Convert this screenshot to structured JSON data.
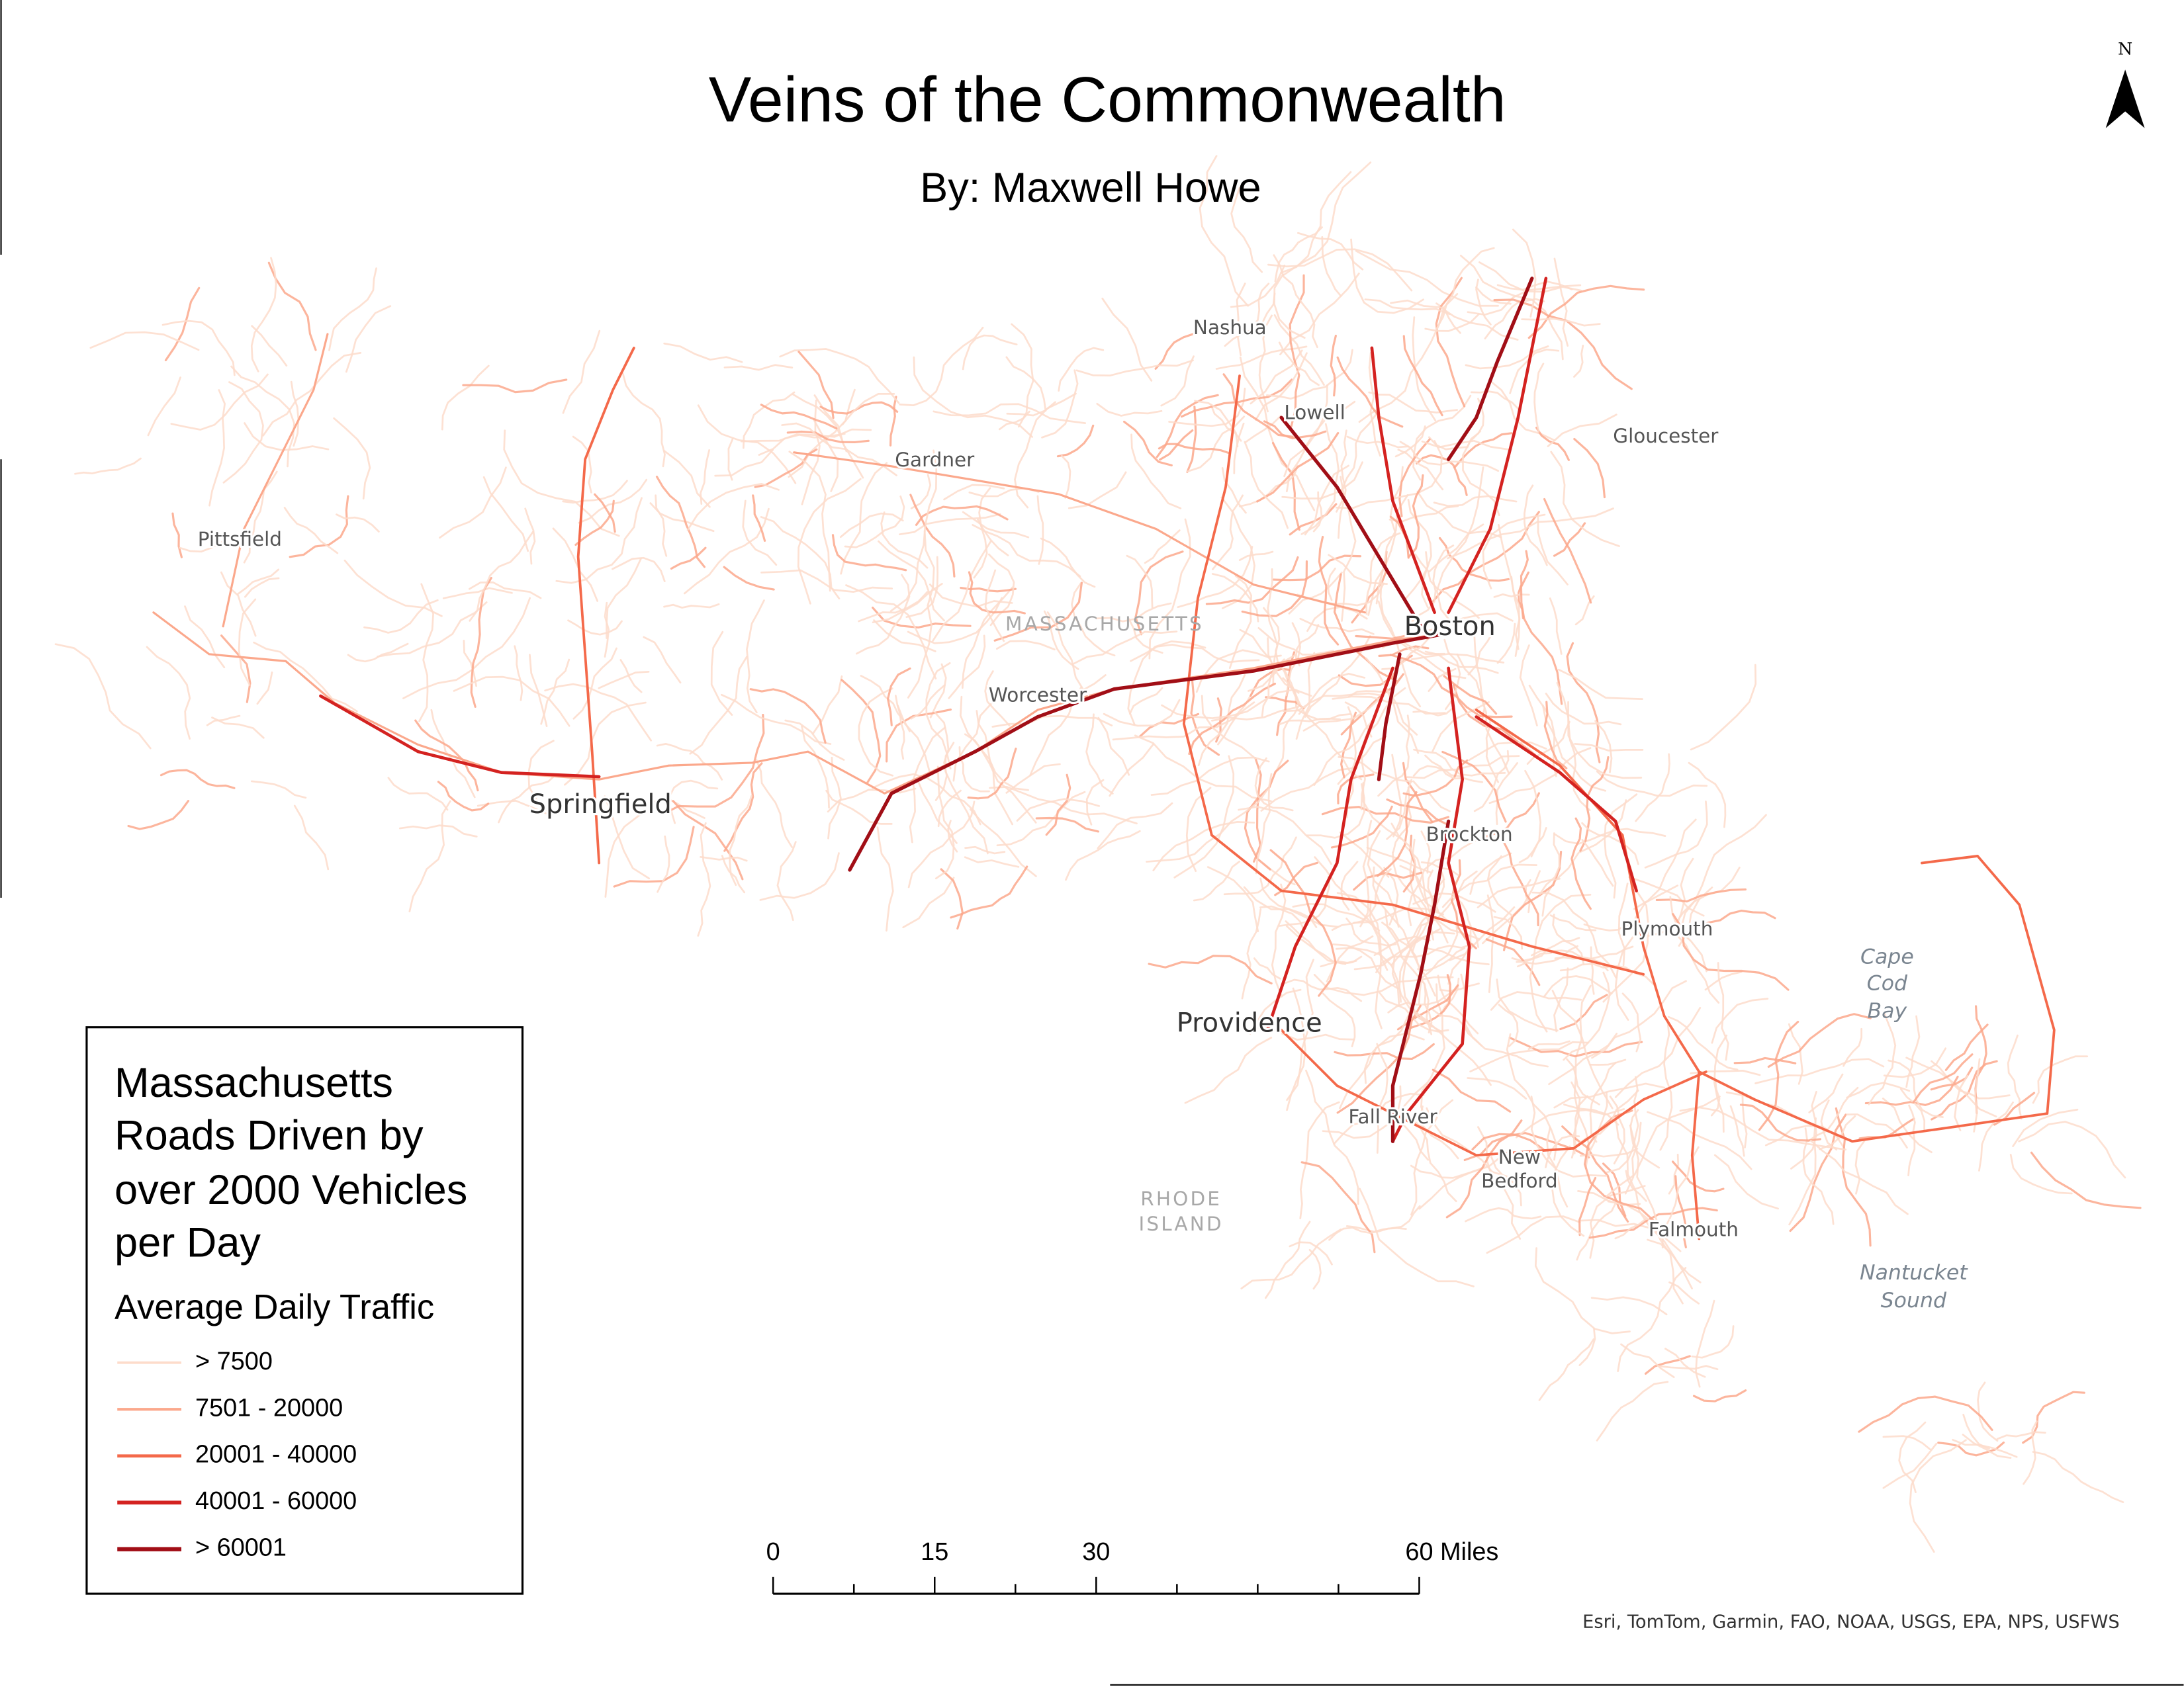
{
  "title": "Veins of the Commonwealth",
  "subtitle": "By: Maxwell Howe",
  "north_arrow": "N",
  "legend": {
    "title_lines": [
      "Massachusetts",
      "Roads Driven by",
      "over 2000 Vehicles",
      "per Day"
    ],
    "subtitle": "Average Daily Traffic",
    "items": [
      {
        "label": "> 7500",
        "color": "#fddccb"
      },
      {
        "label": "7501 - 20000",
        "color": "#fba88c"
      },
      {
        "label": "20001 - 40000",
        "color": "#f4694a"
      },
      {
        "label": "40001 - 60000",
        "color": "#d42220"
      },
      {
        "label": "> 60001",
        "color": "#a10e16"
      }
    ]
  },
  "scale_bar": {
    "labels": [
      "0",
      "15",
      "30",
      "60 Miles"
    ]
  },
  "attribution": "Esri, TomTom, Garmin, FAO, NOAA, USGS, EPA, NPS, USFWS",
  "places": {
    "nashua": "Nashua",
    "lowell": "Lowell",
    "gloucester": "Gloucester",
    "gardner": "Gardner",
    "pittsfield": "Pittsfield",
    "massachusetts": "MASSACHUSETTS",
    "boston": "Boston",
    "worcester": "Worcester",
    "springfield": "Springfield",
    "brockton": "Brockton",
    "plymouth": "Plymouth",
    "cape_cod_bay": [
      "Cape",
      "Cod",
      "Bay"
    ],
    "providence": "Providence",
    "fall_river": "Fall River",
    "new_bedford": [
      "New",
      "Bedford"
    ],
    "rhode_island": [
      "RHODE",
      "ISLAND"
    ],
    "falmouth": "Falmouth",
    "nantucket_sound": [
      "Nantucket",
      "Sound"
    ]
  }
}
